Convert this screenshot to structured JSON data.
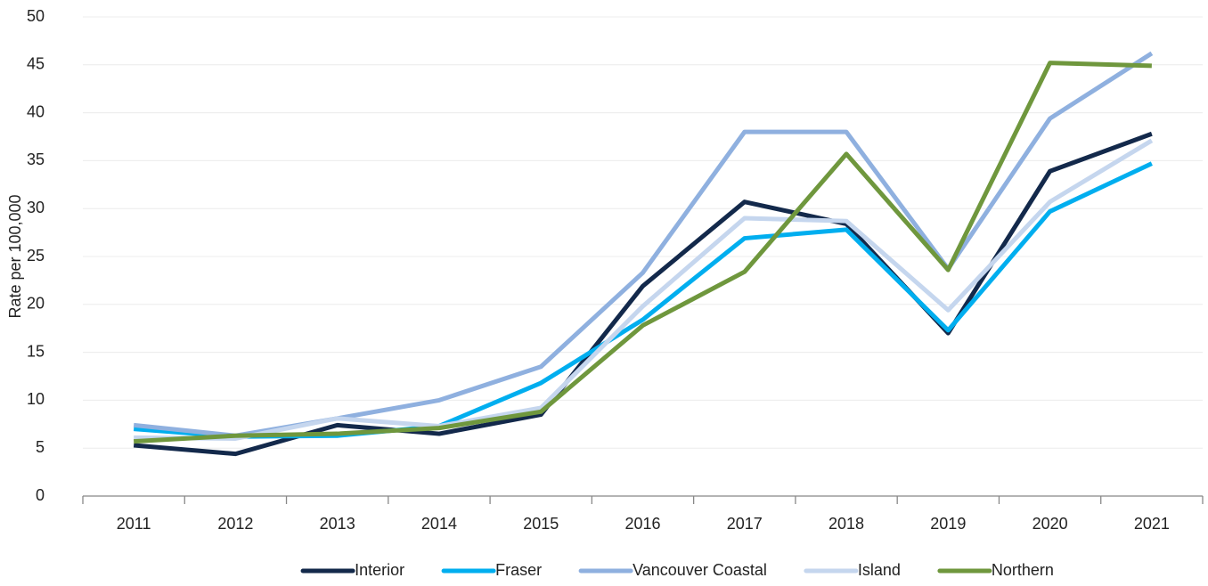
{
  "chart_data": {
    "type": "line",
    "ylabel": "Rate per 100,000",
    "categories": [
      "2011",
      "2012",
      "2013",
      "2014",
      "2015",
      "2016",
      "2017",
      "2018",
      "2019",
      "2020",
      "2021"
    ],
    "series": [
      {
        "name": "Interior",
        "color": "#13294b",
        "values": [
          5.3,
          4.4,
          7.4,
          6.5,
          8.5,
          21.9,
          30.7,
          28.4,
          17.0,
          33.9,
          37.8
        ]
      },
      {
        "name": "Fraser",
        "color": "#00aeef",
        "values": [
          7.0,
          6.2,
          6.3,
          7.3,
          11.8,
          18.4,
          26.9,
          27.8,
          17.3,
          29.7,
          34.7
        ]
      },
      {
        "name": "Vancouver Coastal",
        "color": "#8fb0df",
        "values": [
          7.4,
          6.3,
          8.1,
          10.0,
          13.5,
          23.3,
          38.0,
          38.0,
          23.7,
          39.4,
          46.2
        ]
      },
      {
        "name": "Island",
        "color": "#c5d6ee",
        "values": [
          6.1,
          6.0,
          8.1,
          7.3,
          9.2,
          19.8,
          29.0,
          28.7,
          19.4,
          30.7,
          37.1
        ]
      },
      {
        "name": "Northern",
        "color": "#6f973d",
        "values": [
          5.7,
          6.3,
          6.5,
          7.1,
          8.8,
          17.8,
          23.4,
          35.7,
          23.6,
          45.2,
          44.9
        ]
      }
    ],
    "ylim": [
      0,
      50
    ],
    "yticks": [
      0,
      5,
      10,
      15,
      20,
      25,
      30,
      35,
      40,
      45,
      50
    ],
    "grid": true,
    "legend": "bottom"
  }
}
